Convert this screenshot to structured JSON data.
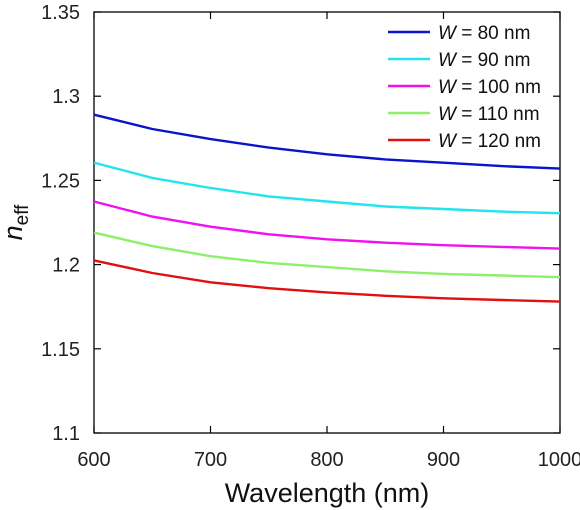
{
  "chart_data": {
    "type": "line",
    "xlabel": "Wavelength (nm)",
    "ylabel_main": "n",
    "ylabel_sub": "eff",
    "xlim": [
      600,
      1000
    ],
    "ylim": [
      1.1,
      1.35
    ],
    "x_ticks": [
      "600",
      "700",
      "800",
      "900",
      "1000"
    ],
    "y_ticks": [
      "1.1",
      "1.15",
      "1.2",
      "1.25",
      "1.3",
      "1.35"
    ],
    "x": [
      600,
      650,
      700,
      750,
      800,
      850,
      900,
      950,
      1000
    ],
    "legend_position": "top-right",
    "grid": false,
    "series": [
      {
        "name_var": "W",
        "name_rest": " = 80 nm",
        "color": "#0a14c8",
        "values": [
          1.289,
          1.2805,
          1.2745,
          1.2695,
          1.2655,
          1.2625,
          1.2605,
          1.2585,
          1.257
        ]
      },
      {
        "name_var": "W",
        "name_rest": " = 90 nm",
        "color": "#22e4ee",
        "values": [
          1.2605,
          1.2515,
          1.2455,
          1.2405,
          1.2375,
          1.2345,
          1.233,
          1.2315,
          1.2305
        ]
      },
      {
        "name_var": "W",
        "name_rest": " = 100 nm",
        "color": "#f011f0",
        "values": [
          1.2375,
          1.2285,
          1.2225,
          1.218,
          1.215,
          1.213,
          1.2115,
          1.2105,
          1.2095
        ]
      },
      {
        "name_var": "W",
        "name_rest": " = 110 nm",
        "color": "#8cf06a",
        "values": [
          1.219,
          1.211,
          1.205,
          1.201,
          1.1985,
          1.196,
          1.1945,
          1.1935,
          1.1925
        ]
      },
      {
        "name_var": "W",
        "name_rest": " = 120 nm",
        "color": "#e01010",
        "values": [
          1.2025,
          1.195,
          1.1895,
          1.186,
          1.1835,
          1.1815,
          1.18,
          1.179,
          1.178
        ]
      }
    ]
  }
}
